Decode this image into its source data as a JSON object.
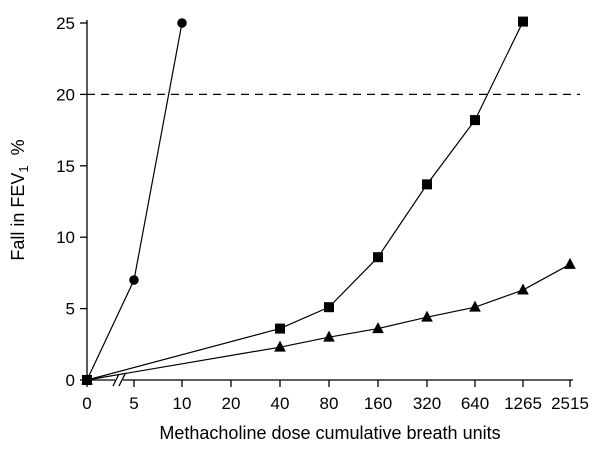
{
  "chart_data": {
    "type": "line",
    "title": "",
    "xlabel": "Methacholine dose cumulative breath units",
    "ylabel": "Fall in FEV1  %",
    "ylabel_main": "Fall in FEV",
    "ylabel_sub": "1",
    "ylabel_unit": "%",
    "x_tick_labels": [
      "0",
      "5",
      "10",
      "20",
      "40",
      "80",
      "160",
      "320",
      "640",
      "1265",
      "2515"
    ],
    "ylim": [
      0,
      25
    ],
    "y_ticks": [
      0,
      5,
      10,
      15,
      20,
      25
    ],
    "x_axis_break": true,
    "reference_line": {
      "y": 20,
      "style": "dashed"
    },
    "series": [
      {
        "marker": "circle",
        "x": [
          "0",
          "5",
          "10"
        ],
        "values": [
          0,
          7,
          25
        ]
      },
      {
        "marker": "square",
        "x": [
          "0",
          "40",
          "80",
          "160",
          "320",
          "640",
          "1265"
        ],
        "values": [
          0,
          3.6,
          5.1,
          8.6,
          13.7,
          18.2,
          25.1
        ]
      },
      {
        "marker": "triangle",
        "x": [
          "0",
          "40",
          "80",
          "160",
          "320",
          "640",
          "1265",
          "2515"
        ],
        "values": [
          0,
          2.3,
          3.0,
          3.6,
          4.4,
          5.1,
          6.3,
          8.1
        ]
      }
    ]
  }
}
